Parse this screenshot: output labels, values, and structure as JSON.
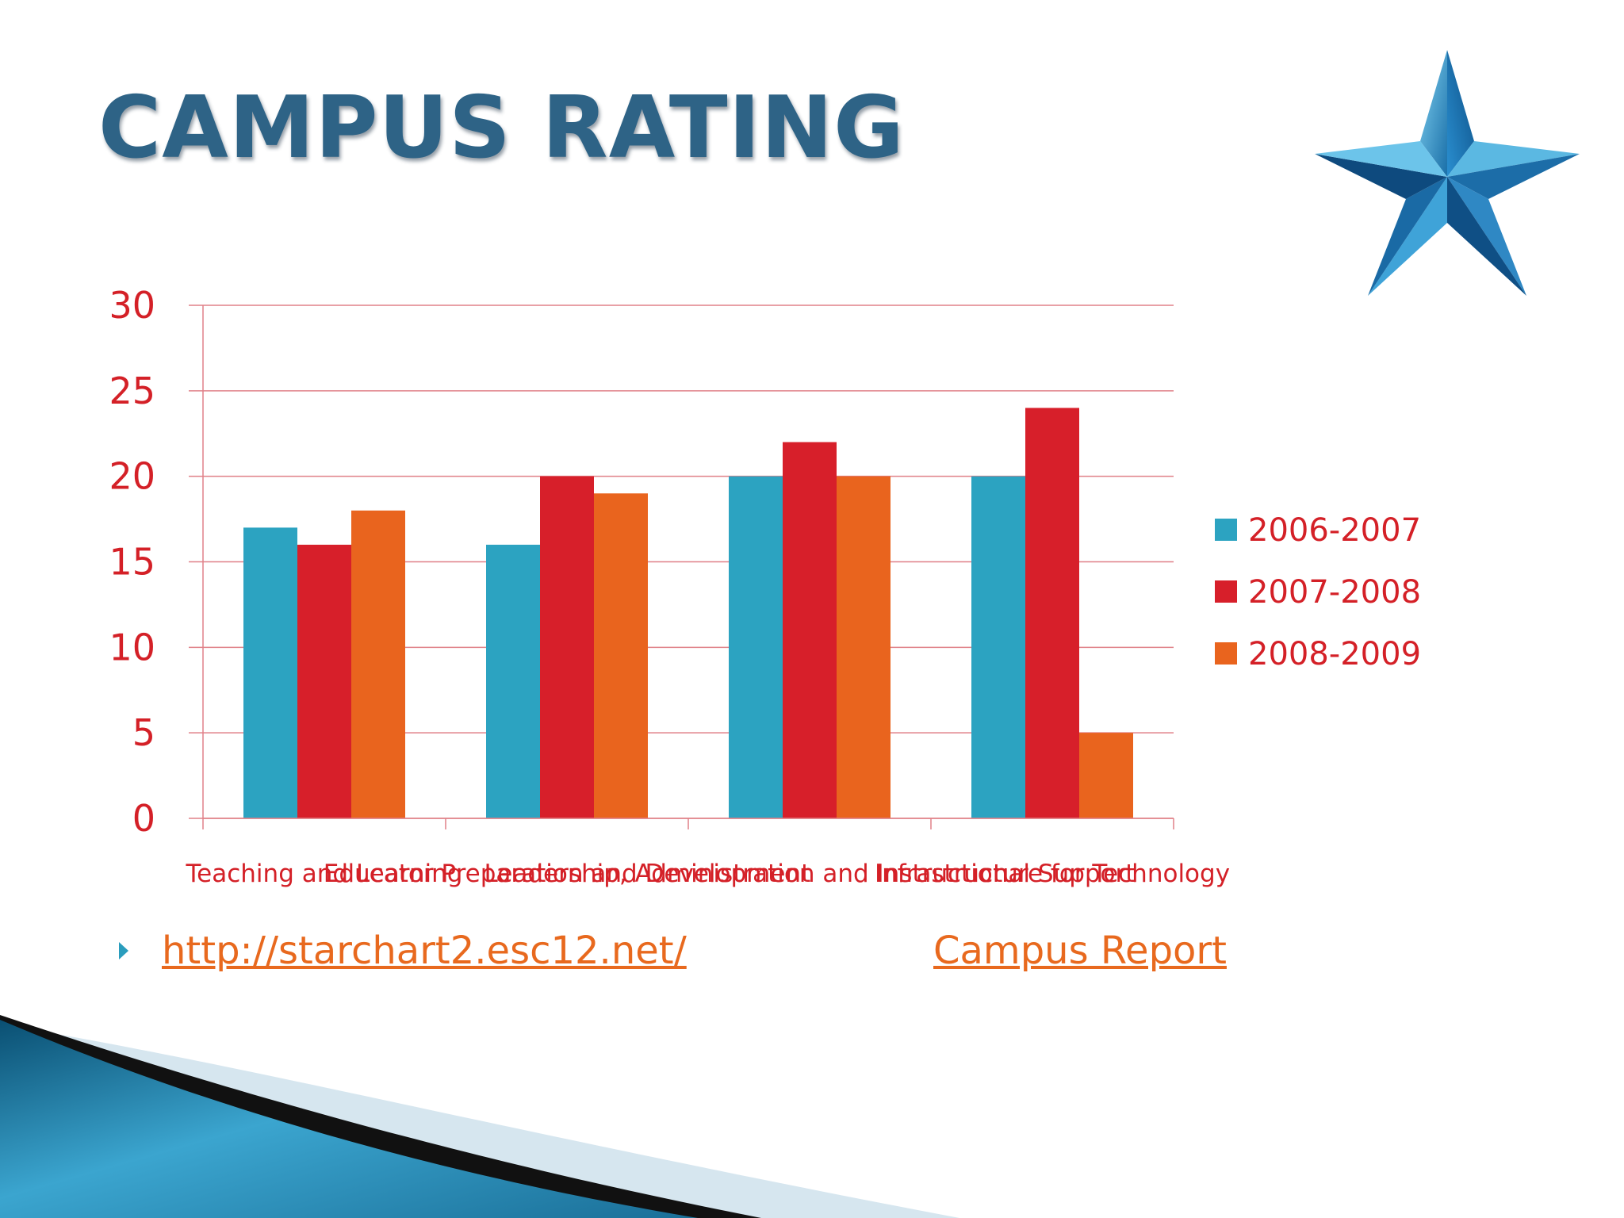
{
  "slide": {
    "title": "CAMPUS RATING",
    "link_url_text": "http://starchart2.esc12.net/",
    "link_report_text": "Campus Report"
  },
  "colors": {
    "title": "#2e6386",
    "series": [
      "#2ca3c1",
      "#d71f2a",
      "#e9641e"
    ],
    "axis_text": "#d42027",
    "gridline": "#e08088",
    "link": "#e8691e"
  },
  "icons": [
    "star-icon",
    "bullet-arrow-icon"
  ],
  "chart_data": {
    "type": "bar",
    "categories": [
      "Teaching and Learning",
      "Educator Preparation and Development",
      "Leadership, Administration and Instructional Support",
      "Infrastructure for Technology"
    ],
    "series": [
      {
        "name": "2006-2007",
        "values": [
          17,
          16,
          20,
          20
        ]
      },
      {
        "name": "2007-2008",
        "values": [
          16,
          20,
          22,
          24
        ]
      },
      {
        "name": "2008-2009",
        "values": [
          18,
          19,
          20,
          5
        ]
      }
    ],
    "ylim": [
      0,
      30
    ],
    "yticks": [
      0,
      5,
      10,
      15,
      20,
      25,
      30
    ],
    "grid": true,
    "legend": "right"
  }
}
